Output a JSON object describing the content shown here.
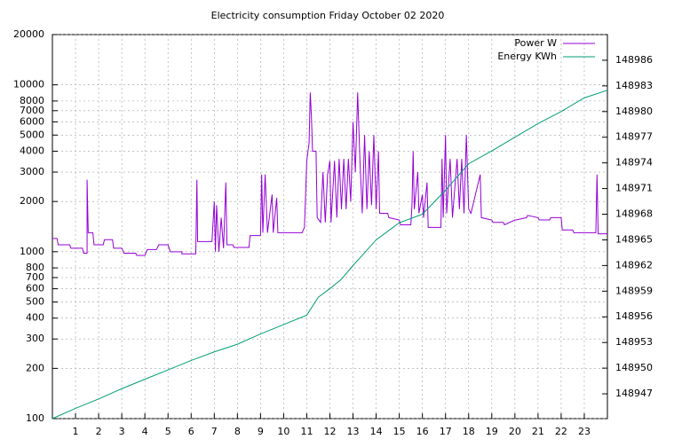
{
  "chart_data": {
    "type": "line",
    "title": "Electricity consumption Friday October 02 2020",
    "xlim": [
      0,
      24
    ],
    "xticks": [
      1,
      2,
      3,
      4,
      5,
      6,
      7,
      8,
      9,
      10,
      11,
      12,
      13,
      14,
      15,
      16,
      17,
      18,
      19,
      20,
      21,
      22,
      23
    ],
    "ylim": [
      100,
      20000
    ],
    "log_y": true,
    "yticks": [
      100,
      200,
      300,
      400,
      500,
      600,
      700,
      800,
      1000,
      2000,
      3000,
      4000,
      5000,
      6000,
      7000,
      8000,
      10000,
      20000
    ],
    "y2lim": [
      148944.1,
      148989
    ],
    "y2ticks": [
      148947,
      148950,
      148953,
      148956,
      148959,
      148962,
      148965,
      148968,
      148971,
      148974,
      148977,
      148980,
      148983,
      148986
    ],
    "grid": true,
    "legend": "top-right",
    "series": [
      {
        "name": "Power W",
        "color": "#9400d3",
        "x": [
          0,
          0.2,
          0.25,
          0.75,
          0.8,
          1.3,
          1.35,
          1.5,
          1.5,
          1.55,
          1.75,
          1.8,
          2.2,
          2.25,
          2.6,
          2.65,
          3,
          3.1,
          3.6,
          3.65,
          4,
          4.1,
          4.5,
          4.6,
          5,
          5.1,
          5.6,
          5.6,
          6.2,
          6.25,
          6.28,
          6.9,
          7,
          7.05,
          7.1,
          7.2,
          7.3,
          7.4,
          7.5,
          7.55,
          7.8,
          7.85,
          8.5,
          8.55,
          9,
          9.05,
          9.1,
          9.2,
          9.3,
          9.5,
          9.55,
          9.7,
          9.75,
          10.8,
          10.9,
          11,
          11.1,
          11.15,
          11.2,
          11.25,
          11.4,
          11.45,
          11.6,
          11.7,
          11.8,
          11.9,
          12,
          12.05,
          12.2,
          12.3,
          12.4,
          12.5,
          12.6,
          12.7,
          12.8,
          12.9,
          13,
          13.1,
          13.2,
          13.3,
          13.4,
          13.5,
          13.6,
          13.7,
          13.8,
          13.9,
          14,
          14.1,
          14.15,
          14.5,
          14.55,
          15,
          15.05,
          15.5,
          15.55,
          15.6,
          15.65,
          15.8,
          15.85,
          16,
          16.05,
          16.2,
          16.25,
          16.8,
          16.85,
          16.9,
          17,
          17.05,
          17.2,
          17.3,
          17.5,
          17.6,
          17.7,
          17.8,
          17.9,
          18,
          18.1,
          18.5,
          18.55,
          19,
          19.05,
          19.5,
          19.55,
          20,
          20.05,
          20.5,
          20.55,
          21,
          21.05,
          21.5,
          21.55,
          22,
          22.05,
          22.5,
          22.55,
          23,
          23.05,
          23.5,
          23.55,
          23.6,
          24
        ],
        "values": [
          1200,
          1200,
          1100,
          1100,
          1050,
          1050,
          980,
          980,
          2700,
          1300,
          1300,
          1100,
          1100,
          1180,
          1180,
          1050,
          1050,
          980,
          980,
          950,
          950,
          1030,
          1030,
          1100,
          1100,
          1000,
          1000,
          970,
          970,
          2700,
          1150,
          1150,
          2000,
          1000,
          1900,
          1000,
          1600,
          1050,
          2600,
          1100,
          1100,
          1060,
          1060,
          1250,
          1250,
          2900,
          1300,
          2900,
          1300,
          2200,
          1300,
          2100,
          1300,
          1300,
          1400,
          3500,
          4500,
          9000,
          6500,
          4000,
          4000,
          1600,
          1500,
          3000,
          1500,
          2900,
          3500,
          1500,
          3500,
          1600,
          3600,
          1800,
          3600,
          1800,
          3600,
          2000,
          6000,
          3000,
          9000,
          3500,
          1700,
          5000,
          1800,
          4000,
          1900,
          5000,
          1800,
          4000,
          1700,
          1700,
          1600,
          1550,
          1450,
          1450,
          1900,
          4000,
          1800,
          3000,
          1700,
          2200,
          1600,
          2600,
          1400,
          1400,
          3600,
          1600,
          5000,
          1700,
          3600,
          1600,
          3600,
          1800,
          3600,
          1700,
          5000,
          1800,
          1700,
          2900,
          1600,
          1550,
          1500,
          1500,
          1450,
          1550,
          1550,
          1600,
          1650,
          1600,
          1550,
          1550,
          1600,
          1600,
          1350,
          1350,
          1300,
          1300,
          1300,
          1300,
          2900,
          1280,
          1280
        ]
      },
      {
        "name": "Energy KWh",
        "color": "#009e73",
        "axis": "y2",
        "x": [
          0,
          1,
          2,
          3,
          4,
          5,
          6,
          7,
          8,
          9,
          10,
          11,
          11.5,
          12,
          12.5,
          13,
          13.5,
          14,
          14.5,
          15,
          16,
          17,
          18,
          19,
          20,
          21,
          22,
          23,
          24
        ],
        "values": [
          148944.1,
          148945.3,
          148946.4,
          148947.6,
          148948.7,
          148949.8,
          148950.9,
          148951.9,
          148952.8,
          148954,
          148955.1,
          148956.2,
          148958.3,
          148959.3,
          148960.4,
          148962,
          148963.5,
          148965,
          148966,
          148967,
          148968,
          148970.8,
          148973.9,
          148975.4,
          148977,
          148978.6,
          148980,
          148981.6,
          148982.5
        ]
      }
    ]
  }
}
